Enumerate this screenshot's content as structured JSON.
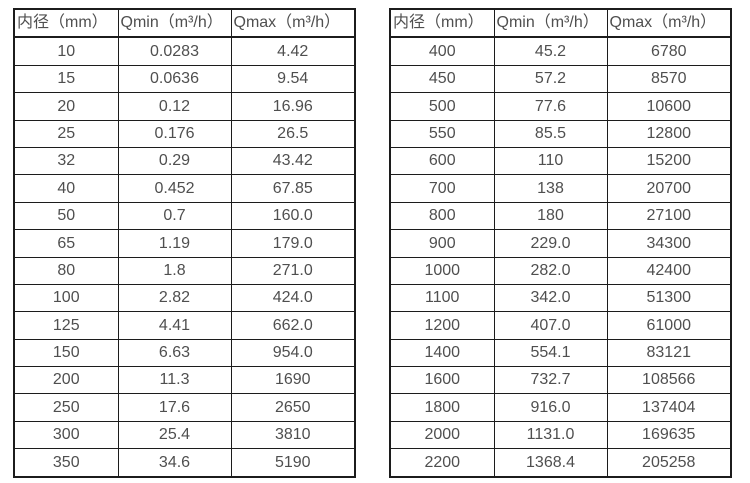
{
  "colors": {
    "background": "#ffffff",
    "border": "#1c1c1c",
    "text": "#4f4f4f"
  },
  "tables": [
    {
      "name": "flow-range-small-diameters",
      "headers": [
        "内径（mm）",
        "Qmin（m³/h）",
        "Qmax（m³/h）"
      ],
      "rows": [
        [
          "10",
          "0.0283",
          "4.42"
        ],
        [
          "15",
          "0.0636",
          "9.54"
        ],
        [
          "20",
          "0.12",
          "16.96"
        ],
        [
          "25",
          "0.176",
          "26.5"
        ],
        [
          "32",
          "0.29",
          "43.42"
        ],
        [
          "40",
          "0.452",
          "67.85"
        ],
        [
          "50",
          "0.7",
          "160.0"
        ],
        [
          "65",
          "1.19",
          "179.0"
        ],
        [
          "80",
          "1.8",
          "271.0"
        ],
        [
          "100",
          "2.82",
          "424.0"
        ],
        [
          "125",
          "4.41",
          "662.0"
        ],
        [
          "150",
          "6.63",
          "954.0"
        ],
        [
          "200",
          "11.3",
          "1690"
        ],
        [
          "250",
          "17.6",
          "2650"
        ],
        [
          "300",
          "25.4",
          "3810"
        ],
        [
          "350",
          "34.6",
          "5190"
        ]
      ]
    },
    {
      "name": "flow-range-large-diameters",
      "headers": [
        "内径（mm）",
        "Qmin（m³/h）",
        "Qmax（m³/h）"
      ],
      "rows": [
        [
          "400",
          "45.2",
          "6780"
        ],
        [
          "450",
          "57.2",
          "8570"
        ],
        [
          "500",
          "77.6",
          "10600"
        ],
        [
          "550",
          "85.5",
          "12800"
        ],
        [
          "600",
          "110",
          "15200"
        ],
        [
          "700",
          "138",
          "20700"
        ],
        [
          "800",
          "180",
          "27100"
        ],
        [
          "900",
          "229.0",
          "34300"
        ],
        [
          "1000",
          "282.0",
          "42400"
        ],
        [
          "1100",
          "342.0",
          "51300"
        ],
        [
          "1200",
          "407.0",
          "61000"
        ],
        [
          "1400",
          "554.1",
          "83121"
        ],
        [
          "1600",
          "732.7",
          "108566"
        ],
        [
          "1800",
          "916.0",
          "137404"
        ],
        [
          "2000",
          "1131.0",
          "169635"
        ],
        [
          "2200",
          "1368.4",
          "205258"
        ]
      ]
    }
  ]
}
